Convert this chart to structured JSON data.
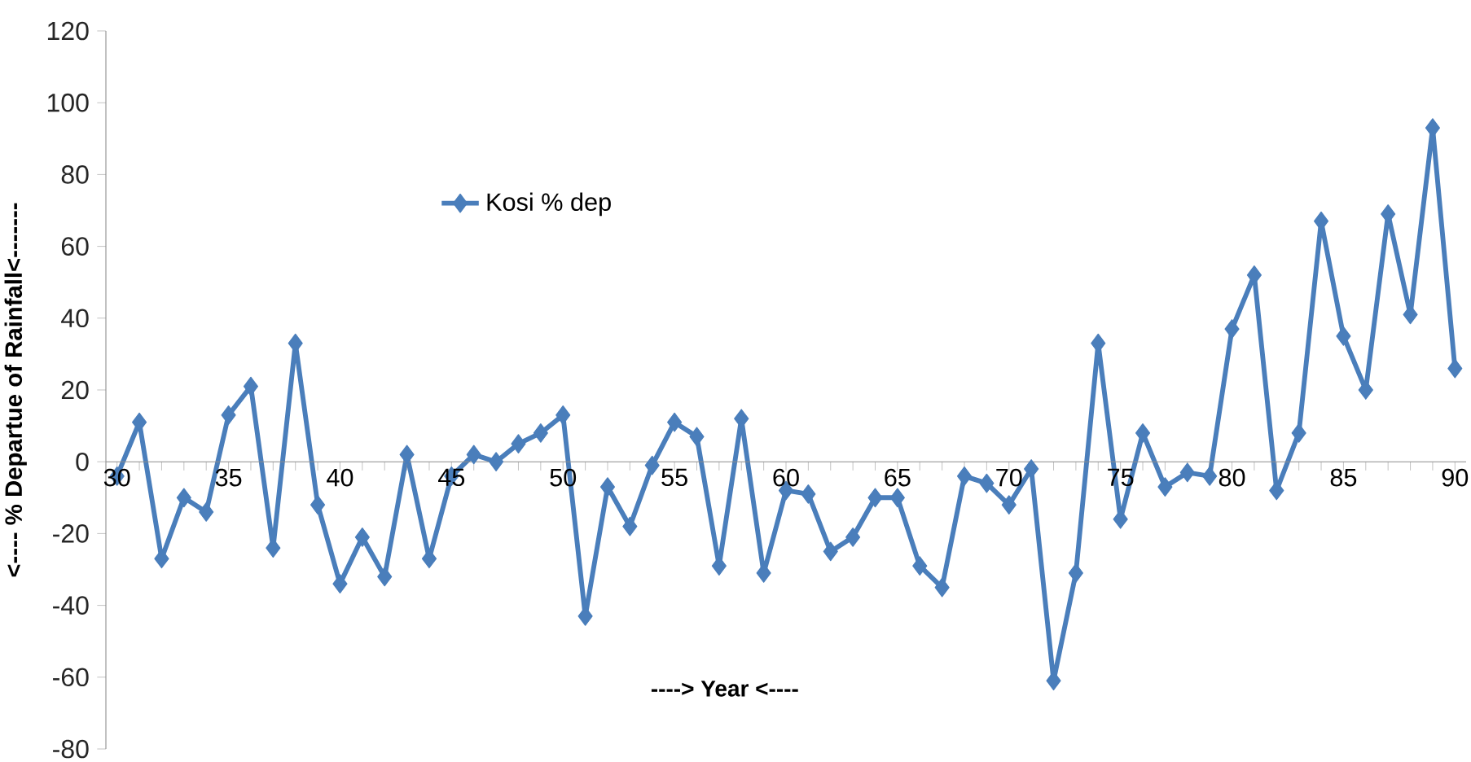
{
  "chart_data": {
    "type": "line",
    "xlabel": "---->   Year <----",
    "ylabel": "<---- % Departue  of Rainfall<-------",
    "x": [
      30,
      31,
      32,
      33,
      34,
      35,
      36,
      37,
      38,
      39,
      40,
      41,
      42,
      43,
      44,
      45,
      46,
      47,
      48,
      49,
      50,
      51,
      52,
      53,
      54,
      55,
      56,
      57,
      58,
      59,
      60,
      61,
      62,
      63,
      64,
      65,
      66,
      67,
      68,
      69,
      70,
      71,
      72,
      73,
      74,
      75,
      76,
      77,
      78,
      79,
      80,
      81,
      82,
      83,
      84,
      85,
      86,
      87,
      88,
      89,
      90
    ],
    "series": [
      {
        "name": "Kosi % dep",
        "color": "#4a7ebb",
        "values": [
          -4,
          11,
          -27,
          -10,
          -14,
          13,
          21,
          -24,
          33,
          -12,
          -34,
          -21,
          -32,
          2,
          -27,
          -4,
          2,
          0,
          5,
          8,
          13,
          -43,
          -7,
          -18,
          -1,
          11,
          7,
          -29,
          12,
          -31,
          -8,
          -9,
          -25,
          -21,
          -10,
          -10,
          -29,
          -35,
          -4,
          -6,
          -12,
          -2,
          -61,
          -31,
          33,
          -16,
          8,
          -7,
          -3,
          -4,
          37,
          52,
          -8,
          8,
          67,
          35,
          20,
          69,
          41,
          93,
          26
        ]
      }
    ],
    "xlim": [
      29.5,
      90.5
    ],
    "xticks": [
      30,
      35,
      40,
      45,
      50,
      55,
      60,
      65,
      70,
      75,
      80,
      85,
      90
    ],
    "ylim": [
      -80,
      120
    ],
    "yticks": [
      -80,
      -60,
      -40,
      -20,
      0,
      20,
      40,
      60,
      80,
      100,
      120
    ],
    "legend": "top left",
    "marker": "diamond"
  }
}
